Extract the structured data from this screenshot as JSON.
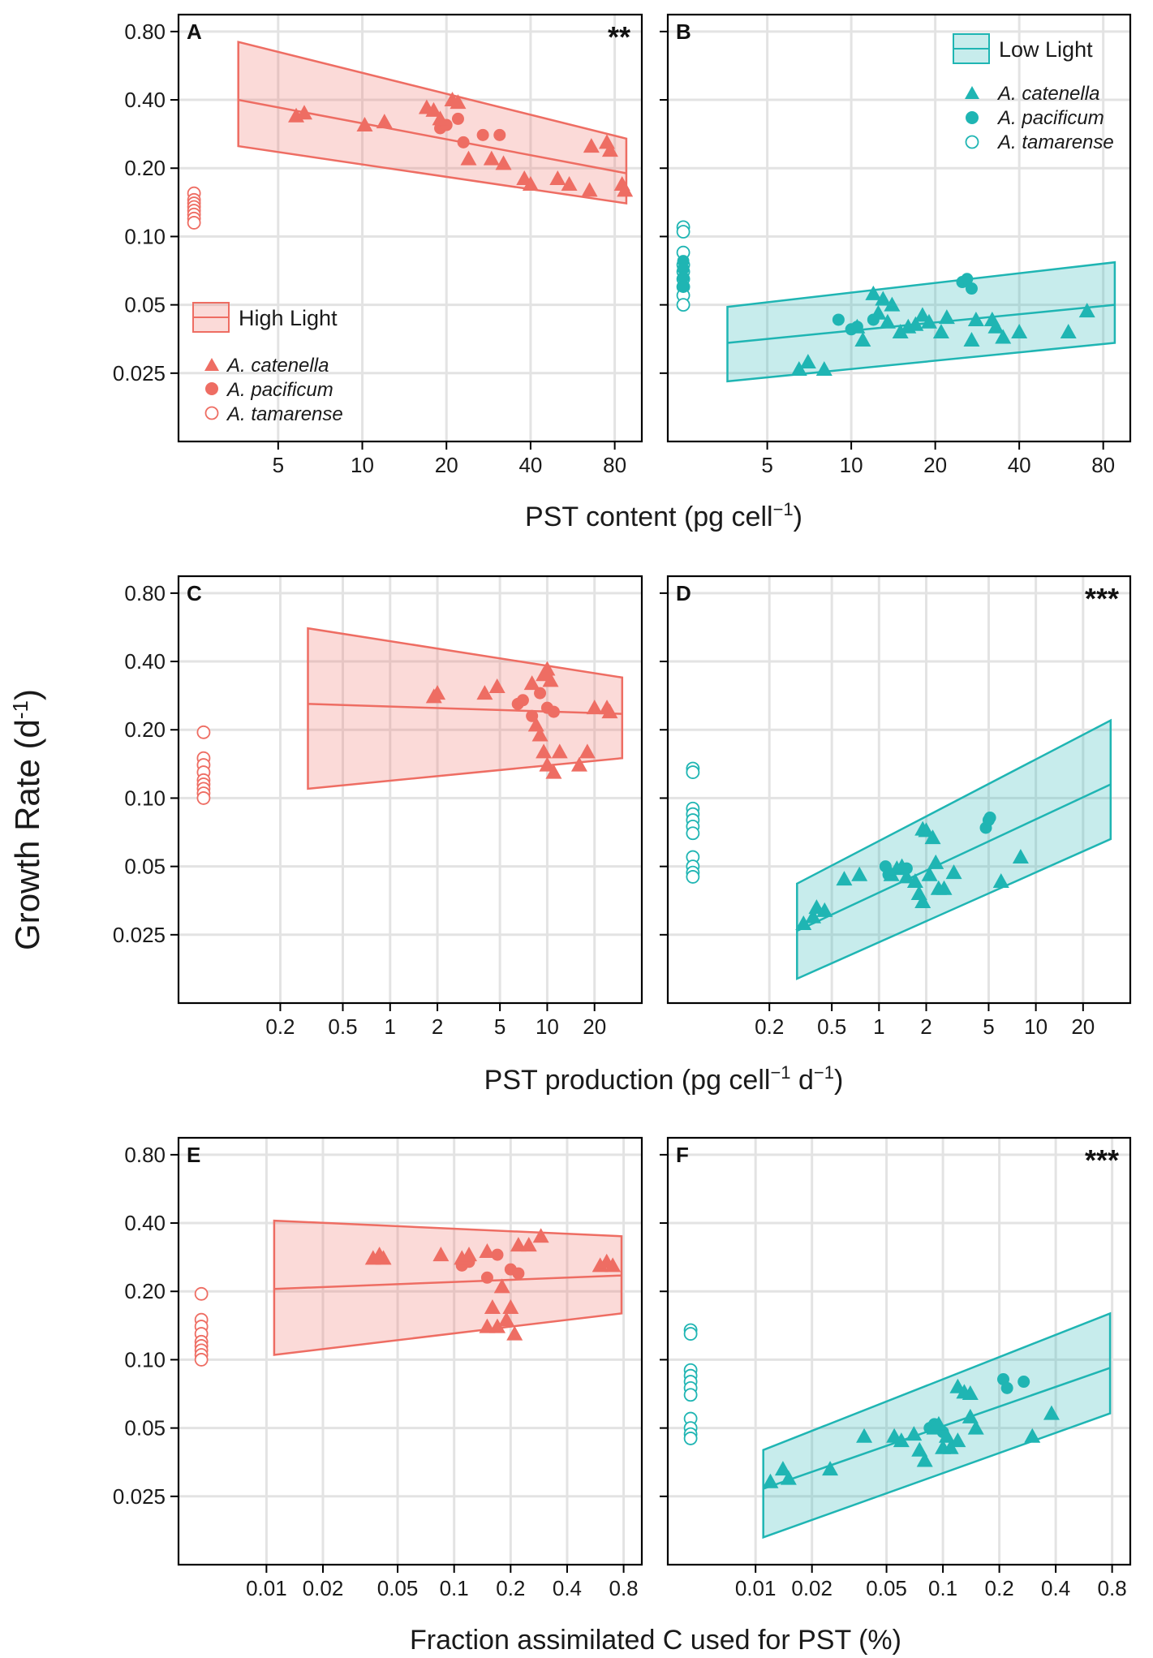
{
  "figure": {
    "ylabel": "Growth Rate (d",
    "ylabel_sup": "-1",
    "ylabel_close": ")",
    "colors": {
      "high": "#ee6d63",
      "low": "#1fb5b3"
    }
  },
  "legend_high": {
    "title": "High Light",
    "species": [
      "A. catenella",
      "A. pacificum",
      "A. tamarense"
    ]
  },
  "legend_low": {
    "title": "Low Light",
    "species": [
      "A. catenella",
      "A. pacificum",
      "A. tamarense"
    ]
  },
  "rows": [
    {
      "xlabel": "PST content (pg cell",
      "xlabel_sup": "−1",
      "xlabel_tail": ")"
    },
    {
      "xlabel": "PST production (pg cell",
      "xlabel_sup": "−1",
      "xlabel_tail": " d",
      "xlabel_sup2": "−1",
      "xlabel_end": ")"
    },
    {
      "xlabel": "Fraction assimilated C used for PST (%)"
    }
  ],
  "chart_data": [
    {
      "panel": "A",
      "type": "scatter",
      "light": "high",
      "significance": "**",
      "ylabel": "Growth Rate (d-1)",
      "xlabel": "PST content (pg cell-1)",
      "y_scale": "log",
      "x_scale": "log",
      "ylim": [
        0.0125,
        0.95
      ],
      "xlim": [
        2.2,
        100
      ],
      "yticks": [
        0.025,
        0.05,
        0.1,
        0.2,
        0.4,
        0.8
      ],
      "ytick_labels": [
        "0.025",
        "0.05",
        "0.10",
        "0.20",
        "0.40",
        "0.80"
      ],
      "xticks": [
        5,
        10,
        20,
        40,
        80
      ],
      "xtick_labels": [
        "5",
        "10",
        "20",
        "40",
        "80"
      ],
      "zero_group_x": 2.5,
      "fit": {
        "x": [
          3.6,
          88
        ],
        "y": [
          0.4,
          0.19
        ],
        "ci_upper": [
          0.72,
          0.27
        ],
        "ci_lower": [
          0.25,
          0.14
        ]
      },
      "catenella": [
        [
          5.8,
          0.34
        ],
        [
          6.2,
          0.35
        ],
        [
          10.2,
          0.31
        ],
        [
          12,
          0.32
        ],
        [
          17,
          0.37
        ],
        [
          18,
          0.36
        ],
        [
          19,
          0.33
        ],
        [
          21,
          0.4
        ],
        [
          22,
          0.39
        ],
        [
          24,
          0.22
        ],
        [
          29,
          0.22
        ],
        [
          32,
          0.21
        ],
        [
          38,
          0.18
        ],
        [
          40,
          0.17
        ],
        [
          50,
          0.18
        ],
        [
          55,
          0.17
        ],
        [
          65,
          0.16
        ],
        [
          66,
          0.25
        ],
        [
          75,
          0.26
        ],
        [
          77,
          0.24
        ],
        [
          85,
          0.17
        ],
        [
          87,
          0.16
        ]
      ],
      "pacificum": [
        [
          19,
          0.3
        ],
        [
          20,
          0.31
        ],
        [
          22,
          0.33
        ],
        [
          23,
          0.26
        ],
        [
          27,
          0.28
        ],
        [
          31,
          0.28
        ]
      ],
      "tamarense": [
        [
          0,
          0.155
        ],
        [
          0,
          0.145
        ],
        [
          0,
          0.14
        ],
        [
          0,
          0.135
        ],
        [
          0,
          0.13
        ],
        [
          0,
          0.125
        ],
        [
          0,
          0.12
        ],
        [
          0,
          0.115
        ]
      ]
    },
    {
      "panel": "B",
      "type": "scatter",
      "light": "low",
      "significance": "",
      "ylabel": "Growth Rate (d-1)",
      "xlabel": "PST content (pg cell-1)",
      "y_scale": "log",
      "x_scale": "log",
      "ylim": [
        0.0125,
        0.95
      ],
      "xlim": [
        2.2,
        100
      ],
      "yticks": [
        0.025,
        0.05,
        0.1,
        0.2,
        0.4,
        0.8
      ],
      "xticks": [
        5,
        10,
        20,
        40,
        80
      ],
      "xtick_labels": [
        "5",
        "10",
        "20",
        "40",
        "80"
      ],
      "zero_group_x": 2.5,
      "fit": {
        "x": [
          3.6,
          88
        ],
        "y": [
          0.034,
          0.05
        ],
        "ci_upper": [
          0.049,
          0.077
        ],
        "ci_lower": [
          0.023,
          0.034
        ]
      },
      "catenella": [
        [
          6.5,
          0.026
        ],
        [
          7,
          0.028
        ],
        [
          8,
          0.026
        ],
        [
          10.5,
          0.04
        ],
        [
          11,
          0.035
        ],
        [
          12,
          0.056
        ],
        [
          12.5,
          0.046
        ],
        [
          13,
          0.053
        ],
        [
          13.5,
          0.042
        ],
        [
          14,
          0.05
        ],
        [
          15,
          0.038
        ],
        [
          16,
          0.04
        ],
        [
          17,
          0.041
        ],
        [
          18,
          0.045
        ],
        [
          19,
          0.042
        ],
        [
          21,
          0.038
        ],
        [
          22,
          0.044
        ],
        [
          27,
          0.035
        ],
        [
          28,
          0.043
        ],
        [
          32,
          0.043
        ],
        [
          33,
          0.04
        ],
        [
          35,
          0.036
        ],
        [
          40,
          0.038
        ],
        [
          60,
          0.038
        ],
        [
          70,
          0.047
        ]
      ],
      "pacificum": [
        [
          9,
          0.043
        ],
        [
          10,
          0.039
        ],
        [
          10.5,
          0.04
        ],
        [
          12,
          0.043
        ],
        [
          25,
          0.063
        ],
        [
          26,
          0.065
        ],
        [
          27,
          0.059
        ]
      ],
      "tamarense": [
        [
          0,
          0.11
        ],
        [
          0,
          0.105
        ],
        [
          0,
          0.085
        ],
        [
          0,
          0.075
        ],
        [
          0,
          0.07
        ],
        [
          0,
          0.065
        ],
        [
          0,
          0.06
        ],
        [
          0,
          0.055
        ],
        [
          0,
          0.05
        ]
      ],
      "pacificum_zero": [
        [
          0,
          0.078
        ],
        [
          0,
          0.072
        ],
        [
          0,
          0.066
        ],
        [
          0,
          0.06
        ]
      ]
    },
    {
      "panel": "C",
      "type": "scatter",
      "light": "high",
      "significance": "",
      "ylabel": "Growth Rate (d-1)",
      "xlabel": "PST production (pg cell-1 d-1)",
      "y_scale": "log",
      "x_scale": "log",
      "ylim": [
        0.0125,
        0.95
      ],
      "xlim": [
        0.045,
        40
      ],
      "yticks": [
        0.025,
        0.05,
        0.1,
        0.2,
        0.4,
        0.8
      ],
      "ytick_labels": [
        "0.025",
        "0.05",
        "0.10",
        "0.20",
        "0.40",
        "0.80"
      ],
      "xticks": [
        0.2,
        0.5,
        1,
        2,
        5,
        10,
        20
      ],
      "xtick_labels": [
        "0.2",
        "0.5",
        "1",
        "2",
        "5",
        "10",
        "20"
      ],
      "zero_group_x": 0.065,
      "fit": {
        "x": [
          0.3,
          30
        ],
        "y": [
          0.26,
          0.235
        ],
        "ci_upper": [
          0.56,
          0.34
        ],
        "ci_lower": [
          0.11,
          0.15
        ]
      },
      "catenella": [
        [
          1.9,
          0.28
        ],
        [
          2.0,
          0.29
        ],
        [
          4.0,
          0.29
        ],
        [
          4.8,
          0.31
        ],
        [
          8.0,
          0.32
        ],
        [
          8.5,
          0.21
        ],
        [
          9.0,
          0.19
        ],
        [
          9.5,
          0.35
        ],
        [
          10,
          0.37
        ],
        [
          10.5,
          0.33
        ],
        [
          9.5,
          0.16
        ],
        [
          10,
          0.14
        ],
        [
          11,
          0.13
        ],
        [
          12,
          0.16
        ],
        [
          16,
          0.14
        ],
        [
          18,
          0.16
        ],
        [
          20,
          0.25
        ],
        [
          24,
          0.25
        ],
        [
          25,
          0.24
        ]
      ],
      "pacificum": [
        [
          6.5,
          0.26
        ],
        [
          7.0,
          0.27
        ],
        [
          8.0,
          0.23
        ],
        [
          9.0,
          0.29
        ],
        [
          10,
          0.25
        ],
        [
          11,
          0.24
        ]
      ],
      "tamarense": [
        [
          0,
          0.195
        ],
        [
          0,
          0.15
        ],
        [
          0,
          0.14
        ],
        [
          0,
          0.13
        ],
        [
          0,
          0.12
        ],
        [
          0,
          0.115
        ],
        [
          0,
          0.11
        ],
        [
          0,
          0.105
        ],
        [
          0,
          0.1
        ]
      ]
    },
    {
      "panel": "D",
      "type": "scatter",
      "light": "low",
      "significance": "***",
      "ylabel": "Growth Rate (d-1)",
      "xlabel": "PST production (pg cell-1 d-1)",
      "y_scale": "log",
      "x_scale": "log",
      "ylim": [
        0.0125,
        0.95
      ],
      "xlim": [
        0.045,
        40
      ],
      "yticks": [
        0.025,
        0.05,
        0.1,
        0.2,
        0.4,
        0.8
      ],
      "xticks": [
        0.2,
        0.5,
        1,
        2,
        5,
        10,
        20
      ],
      "xtick_labels": [
        "0.2",
        "0.5",
        "1",
        "2",
        "5",
        "10",
        "20"
      ],
      "zero_group_x": 0.065,
      "fit": {
        "x": [
          0.3,
          30
        ],
        "y": [
          0.026,
          0.115
        ],
        "ci_upper": [
          0.042,
          0.22
        ],
        "ci_lower": [
          0.016,
          0.066
        ]
      },
      "catenella": [
        [
          0.33,
          0.028
        ],
        [
          0.38,
          0.03
        ],
        [
          0.4,
          0.033
        ],
        [
          0.45,
          0.032
        ],
        [
          0.6,
          0.044
        ],
        [
          0.75,
          0.046
        ],
        [
          1.2,
          0.046
        ],
        [
          1.3,
          0.049
        ],
        [
          1.4,
          0.05
        ],
        [
          1.5,
          0.045
        ],
        [
          1.7,
          0.043
        ],
        [
          1.8,
          0.038
        ],
        [
          1.9,
          0.035
        ],
        [
          1.9,
          0.073
        ],
        [
          2.0,
          0.072
        ],
        [
          2.1,
          0.046
        ],
        [
          2.2,
          0.067
        ],
        [
          2.3,
          0.052
        ],
        [
          2.4,
          0.04
        ],
        [
          2.6,
          0.04
        ],
        [
          3.0,
          0.047
        ],
        [
          6.0,
          0.043
        ],
        [
          8.0,
          0.055
        ]
      ],
      "pacificum": [
        [
          1.1,
          0.05
        ],
        [
          1.15,
          0.046
        ],
        [
          1.5,
          0.049
        ],
        [
          4.8,
          0.074
        ],
        [
          5.0,
          0.08
        ],
        [
          5.1,
          0.082
        ]
      ],
      "tamarense": [
        [
          0,
          0.135
        ],
        [
          0,
          0.13
        ],
        [
          0,
          0.09
        ],
        [
          0,
          0.085
        ],
        [
          0,
          0.08
        ],
        [
          0,
          0.075
        ],
        [
          0,
          0.07
        ],
        [
          0,
          0.055
        ],
        [
          0,
          0.05
        ],
        [
          0,
          0.047
        ],
        [
          0,
          0.045
        ]
      ]
    },
    {
      "panel": "E",
      "type": "scatter",
      "light": "high",
      "significance": "",
      "ylabel": "Growth Rate (d-1)",
      "xlabel": "Fraction assimilated C used for PST (%)",
      "y_scale": "log",
      "x_scale": "log",
      "ylim": [
        0.0125,
        0.95
      ],
      "xlim": [
        0.0034,
        1.0
      ],
      "yticks": [
        0.025,
        0.05,
        0.1,
        0.2,
        0.4,
        0.8
      ],
      "ytick_labels": [
        "0.025",
        "0.05",
        "0.10",
        "0.20",
        "0.40",
        "0.80"
      ],
      "xticks": [
        0.01,
        0.02,
        0.05,
        0.1,
        0.2,
        0.4,
        0.8
      ],
      "xtick_labels": [
        "0.01",
        "0.02",
        "0.05",
        "0.1",
        "0.2",
        "0.4",
        "0.8"
      ],
      "zero_group_x": 0.0045,
      "fit": {
        "x": [
          0.011,
          0.78
        ],
        "y": [
          0.205,
          0.235
        ],
        "ci_upper": [
          0.41,
          0.35
        ],
        "ci_lower": [
          0.105,
          0.16
        ]
      },
      "catenella": [
        [
          0.037,
          0.28
        ],
        [
          0.04,
          0.29
        ],
        [
          0.042,
          0.28
        ],
        [
          0.085,
          0.29
        ],
        [
          0.11,
          0.28
        ],
        [
          0.12,
          0.29
        ],
        [
          0.15,
          0.3
        ],
        [
          0.15,
          0.14
        ],
        [
          0.16,
          0.17
        ],
        [
          0.17,
          0.14
        ],
        [
          0.18,
          0.21
        ],
        [
          0.19,
          0.15
        ],
        [
          0.2,
          0.17
        ],
        [
          0.21,
          0.13
        ],
        [
          0.22,
          0.32
        ],
        [
          0.25,
          0.32
        ],
        [
          0.29,
          0.35
        ],
        [
          0.6,
          0.26
        ],
        [
          0.65,
          0.27
        ],
        [
          0.7,
          0.26
        ]
      ],
      "pacificum": [
        [
          0.11,
          0.26
        ],
        [
          0.12,
          0.27
        ],
        [
          0.15,
          0.23
        ],
        [
          0.17,
          0.29
        ],
        [
          0.2,
          0.25
        ],
        [
          0.22,
          0.24
        ]
      ],
      "tamarense": [
        [
          0,
          0.195
        ],
        [
          0,
          0.15
        ],
        [
          0,
          0.14
        ],
        [
          0,
          0.13
        ],
        [
          0,
          0.12
        ],
        [
          0,
          0.115
        ],
        [
          0,
          0.11
        ],
        [
          0,
          0.105
        ],
        [
          0,
          0.1
        ]
      ]
    },
    {
      "panel": "F",
      "type": "scatter",
      "light": "low",
      "significance": "***",
      "ylabel": "Growth Rate (d-1)",
      "xlabel": "Fraction assimilated C used for PST (%)",
      "y_scale": "log",
      "x_scale": "log",
      "ylim": [
        0.0125,
        0.95
      ],
      "xlim": [
        0.0034,
        1.0
      ],
      "yticks": [
        0.025,
        0.05,
        0.1,
        0.2,
        0.4,
        0.8
      ],
      "xticks": [
        0.01,
        0.02,
        0.05,
        0.1,
        0.2,
        0.4,
        0.8
      ],
      "xtick_labels": [
        "0.01",
        "0.02",
        "0.05",
        "0.1",
        "0.2",
        "0.4",
        "0.8"
      ],
      "zero_group_x": 0.0045,
      "fit": {
        "x": [
          0.011,
          0.78
        ],
        "y": [
          0.027,
          0.092
        ],
        "ci_upper": [
          0.04,
          0.16
        ],
        "ci_lower": [
          0.0165,
          0.058
        ]
      },
      "catenella": [
        [
          0.012,
          0.029
        ],
        [
          0.014,
          0.033
        ],
        [
          0.015,
          0.03
        ],
        [
          0.025,
          0.033
        ],
        [
          0.038,
          0.046
        ],
        [
          0.055,
          0.046
        ],
        [
          0.06,
          0.044
        ],
        [
          0.07,
          0.047
        ],
        [
          0.075,
          0.04
        ],
        [
          0.08,
          0.036
        ],
        [
          0.09,
          0.05
        ],
        [
          0.095,
          0.052
        ],
        [
          0.1,
          0.041
        ],
        [
          0.105,
          0.046
        ],
        [
          0.11,
          0.041
        ],
        [
          0.12,
          0.044
        ],
        [
          0.12,
          0.076
        ],
        [
          0.13,
          0.072
        ],
        [
          0.14,
          0.056
        ],
        [
          0.14,
          0.071
        ],
        [
          0.15,
          0.05
        ],
        [
          0.3,
          0.046
        ],
        [
          0.38,
          0.058
        ]
      ],
      "pacificum": [
        [
          0.085,
          0.05
        ],
        [
          0.09,
          0.052
        ],
        [
          0.1,
          0.048
        ],
        [
          0.21,
          0.082
        ],
        [
          0.22,
          0.075
        ],
        [
          0.27,
          0.08
        ]
      ],
      "tamarense": [
        [
          0,
          0.135
        ],
        [
          0,
          0.13
        ],
        [
          0,
          0.09
        ],
        [
          0,
          0.085
        ],
        [
          0,
          0.08
        ],
        [
          0,
          0.075
        ],
        [
          0,
          0.07
        ],
        [
          0,
          0.055
        ],
        [
          0,
          0.05
        ],
        [
          0,
          0.047
        ],
        [
          0,
          0.045
        ]
      ]
    }
  ]
}
